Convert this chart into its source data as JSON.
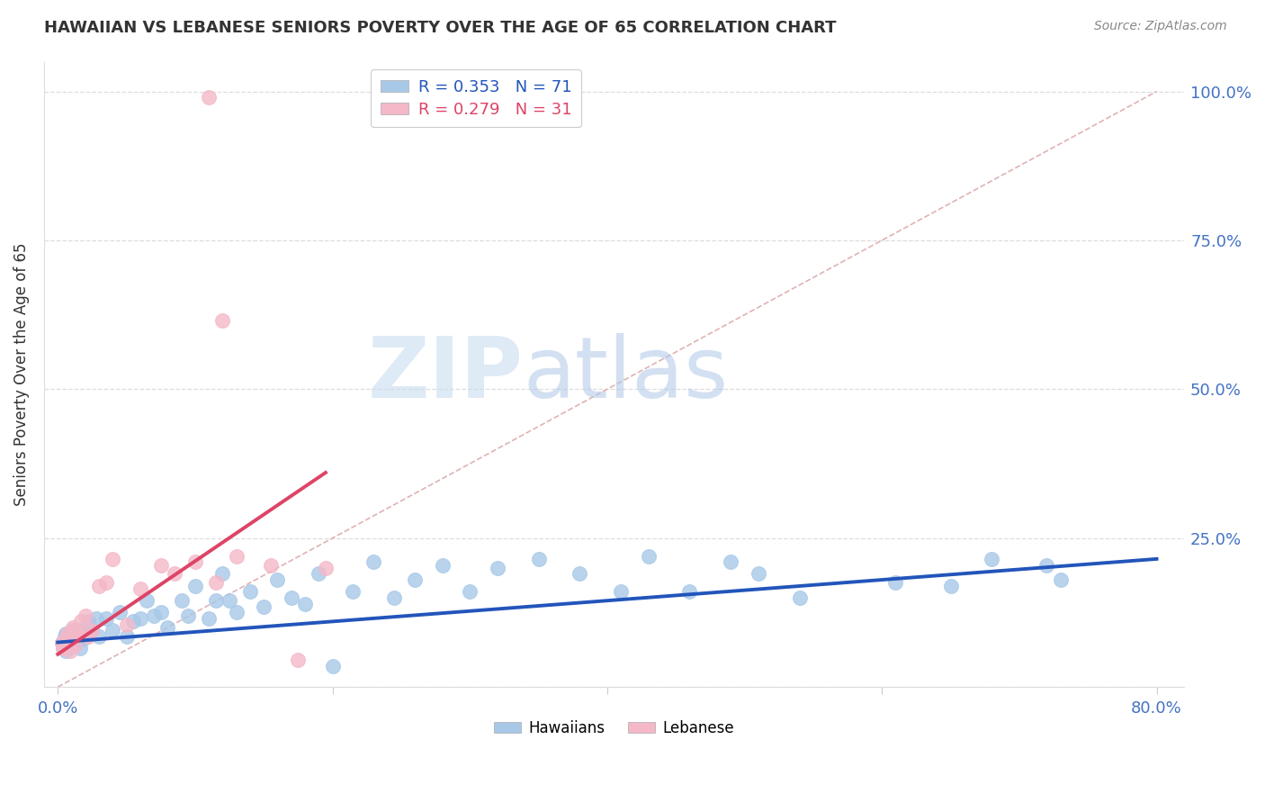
{
  "title": "HAWAIIAN VS LEBANESE SENIORS POVERTY OVER THE AGE OF 65 CORRELATION CHART",
  "source": "Source: ZipAtlas.com",
  "ylabel": "Seniors Poverty Over the Age of 65",
  "xlim": [
    0.0,
    0.8
  ],
  "ylim": [
    0.0,
    1.05
  ],
  "yticks": [
    0.0,
    0.25,
    0.5,
    0.75,
    1.0
  ],
  "xticks": [
    0.0,
    0.2,
    0.4,
    0.6,
    0.8
  ],
  "xtick_labels": [
    "0.0%",
    "",
    "",
    "",
    "80.0%"
  ],
  "ytick_labels_right": [
    "",
    "25.0%",
    "50.0%",
    "75.0%",
    "100.0%"
  ],
  "hawaiian_color": "#a8c8e8",
  "lebanese_color": "#f4b8c8",
  "hawaiian_line_color": "#2255bb",
  "lebanese_line_color": "#dd4466",
  "ref_line_color": "#ddaaaa",
  "background_color": "#ffffff",
  "grid_color": "#dddddd",
  "watermark_zip_color": "#c8ddf0",
  "watermark_atlas_color": "#b0c8e8",
  "hawaiian_N": 71,
  "lebanese_N": 31,
  "hawaiian_x": [
    0.003,
    0.004,
    0.005,
    0.005,
    0.006,
    0.006,
    0.007,
    0.007,
    0.008,
    0.008,
    0.009,
    0.01,
    0.01,
    0.011,
    0.012,
    0.013,
    0.014,
    0.015,
    0.016,
    0.017,
    0.018,
    0.02,
    0.022,
    0.025,
    0.028,
    0.03,
    0.035,
    0.04,
    0.045,
    0.05,
    0.055,
    0.06,
    0.065,
    0.07,
    0.075,
    0.08,
    0.09,
    0.095,
    0.1,
    0.11,
    0.115,
    0.12,
    0.125,
    0.13,
    0.14,
    0.15,
    0.16,
    0.17,
    0.18,
    0.19,
    0.2,
    0.215,
    0.23,
    0.245,
    0.26,
    0.28,
    0.3,
    0.32,
    0.35,
    0.38,
    0.41,
    0.43,
    0.46,
    0.49,
    0.51,
    0.54,
    0.61,
    0.65,
    0.68,
    0.72,
    0.73
  ],
  "hawaiian_y": [
    0.075,
    0.065,
    0.07,
    0.085,
    0.06,
    0.09,
    0.08,
    0.075,
    0.085,
    0.065,
    0.09,
    0.095,
    0.07,
    0.08,
    0.075,
    0.08,
    0.09,
    0.095,
    0.065,
    0.085,
    0.08,
    0.09,
    0.11,
    0.095,
    0.115,
    0.085,
    0.115,
    0.095,
    0.125,
    0.085,
    0.11,
    0.115,
    0.145,
    0.12,
    0.125,
    0.1,
    0.145,
    0.12,
    0.17,
    0.115,
    0.145,
    0.19,
    0.145,
    0.125,
    0.16,
    0.135,
    0.18,
    0.15,
    0.14,
    0.19,
    0.035,
    0.16,
    0.21,
    0.15,
    0.18,
    0.205,
    0.16,
    0.2,
    0.215,
    0.19,
    0.16,
    0.22,
    0.16,
    0.21,
    0.19,
    0.15,
    0.175,
    0.17,
    0.215,
    0.205,
    0.18
  ],
  "lebanese_x": [
    0.003,
    0.004,
    0.005,
    0.006,
    0.007,
    0.008,
    0.009,
    0.01,
    0.011,
    0.012,
    0.013,
    0.015,
    0.017,
    0.02,
    0.022,
    0.025,
    0.03,
    0.035,
    0.04,
    0.05,
    0.06,
    0.075,
    0.085,
    0.1,
    0.115,
    0.13,
    0.155,
    0.175,
    0.195,
    0.12,
    0.11
  ],
  "lebanese_y": [
    0.075,
    0.065,
    0.07,
    0.08,
    0.09,
    0.075,
    0.06,
    0.085,
    0.1,
    0.07,
    0.095,
    0.09,
    0.11,
    0.12,
    0.085,
    0.095,
    0.17,
    0.175,
    0.215,
    0.105,
    0.165,
    0.205,
    0.19,
    0.21,
    0.175,
    0.22,
    0.205,
    0.045,
    0.2,
    0.615,
    0.99
  ],
  "haw_trendline_x": [
    0.0,
    0.8
  ],
  "haw_trendline_y": [
    0.075,
    0.215
  ],
  "leb_trendline_x": [
    0.0,
    0.195
  ],
  "leb_trendline_y": [
    0.055,
    0.36
  ],
  "ref_line_x": [
    0.0,
    0.8
  ],
  "ref_line_y": [
    0.0,
    1.0
  ]
}
